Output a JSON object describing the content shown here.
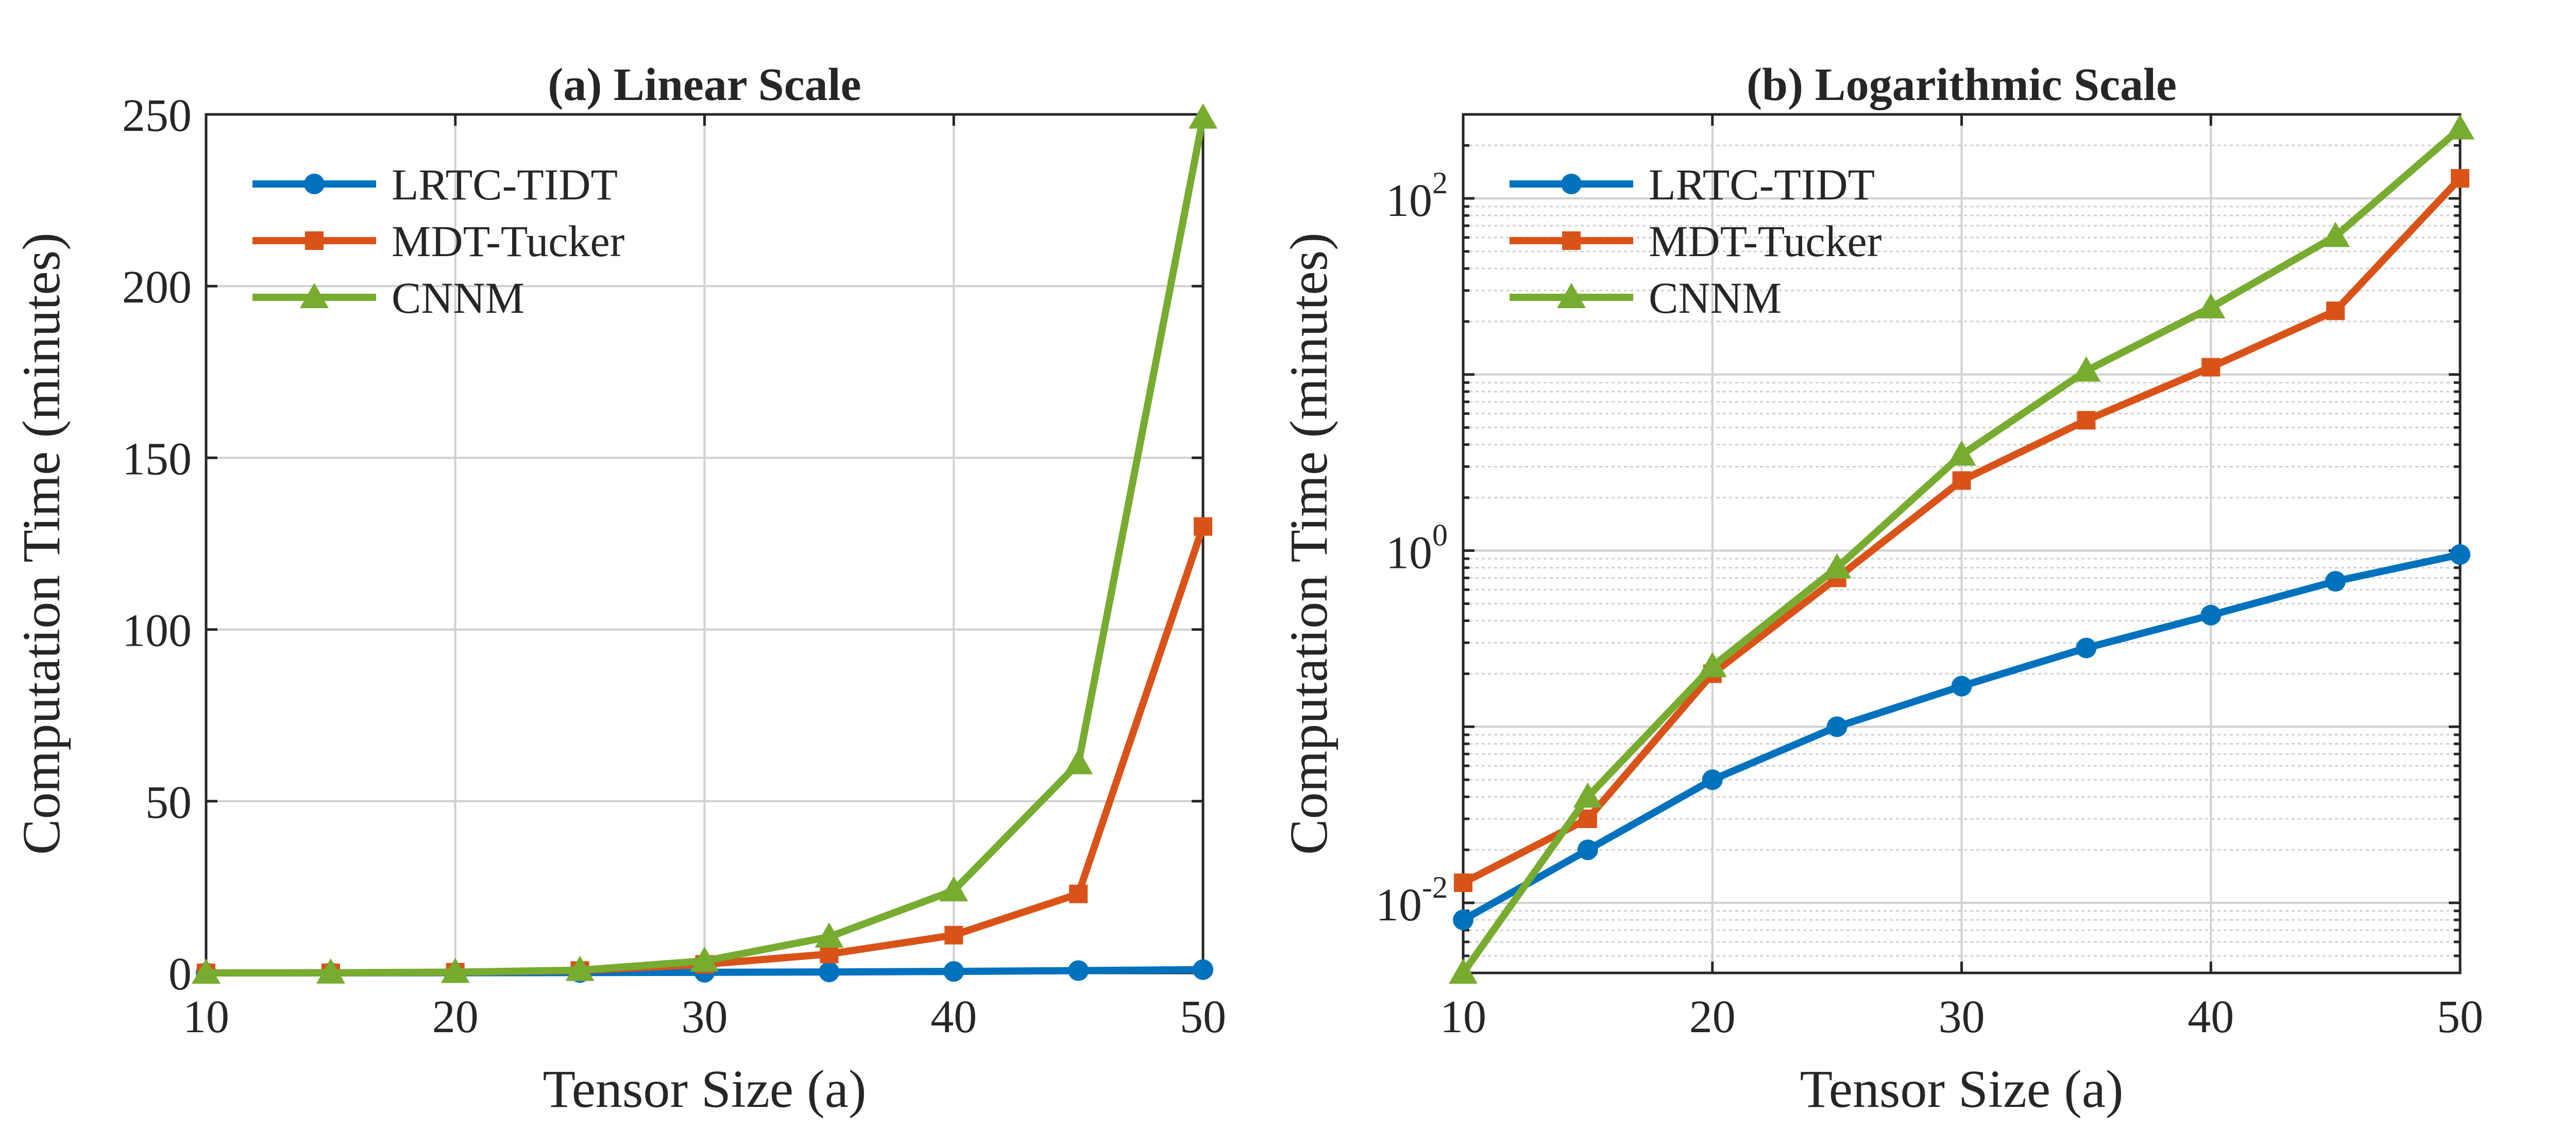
{
  "chart_data": [
    {
      "type": "line",
      "title": "(a) Linear Scale",
      "xlabel": "Tensor Size (a)",
      "ylabel": "Computation Time (minutes)",
      "yscale": "linear",
      "xlim": [
        10,
        50
      ],
      "ylim": [
        0,
        250
      ],
      "xticks": [
        10,
        20,
        30,
        40,
        50
      ],
      "yticks": [
        0,
        50,
        100,
        150,
        200,
        250
      ],
      "grid": true,
      "legend_position": "top-left",
      "x": [
        10,
        15,
        20,
        25,
        30,
        35,
        40,
        45,
        50
      ],
      "series": [
        {
          "name": "LRTC-TIDT",
          "color": "#0072BD",
          "marker": "circle",
          "values": [
            0.008,
            0.02,
            0.05,
            0.1,
            0.17,
            0.28,
            0.43,
            0.67,
            0.95
          ]
        },
        {
          "name": "MDT-Tucker",
          "color": "#D95319",
          "marker": "square",
          "values": [
            0.013,
            0.03,
            0.2,
            0.7,
            2.5,
            5.5,
            11,
            23,
            130
          ]
        },
        {
          "name": "CNNM",
          "color": "#77AC30",
          "marker": "triangle",
          "values": [
            0.004,
            0.04,
            0.22,
            0.8,
            3.5,
            10.5,
            24,
            61,
            249
          ]
        }
      ]
    },
    {
      "type": "line",
      "title": "(b) Logarithmic Scale",
      "xlabel": "Tensor Size (a)",
      "ylabel": "Computation Time (minutes)",
      "yscale": "log",
      "xlim": [
        10,
        50
      ],
      "ylim": [
        0.004,
        300
      ],
      "xticks": [
        10,
        20,
        30,
        40,
        50
      ],
      "yticks": [
        {
          "base": "10",
          "exp": "-2",
          "value": 0.01
        },
        {
          "base": "10",
          "exp": "0",
          "value": 1
        },
        {
          "base": "10",
          "exp": "2",
          "value": 100
        }
      ],
      "grid": true,
      "legend_position": "top-left",
      "x": [
        10,
        15,
        20,
        25,
        30,
        35,
        40,
        45,
        50
      ],
      "series": [
        {
          "name": "LRTC-TIDT",
          "color": "#0072BD",
          "marker": "circle",
          "values": [
            0.008,
            0.02,
            0.05,
            0.1,
            0.17,
            0.28,
            0.43,
            0.67,
            0.95
          ]
        },
        {
          "name": "MDT-Tucker",
          "color": "#D95319",
          "marker": "square",
          "values": [
            0.013,
            0.03,
            0.2,
            0.7,
            2.5,
            5.5,
            11,
            23,
            130
          ]
        },
        {
          "name": "CNNM",
          "color": "#77AC30",
          "marker": "triangle",
          "values": [
            0.004,
            0.04,
            0.22,
            0.8,
            3.5,
            10.5,
            24,
            61,
            249
          ]
        }
      ]
    }
  ]
}
